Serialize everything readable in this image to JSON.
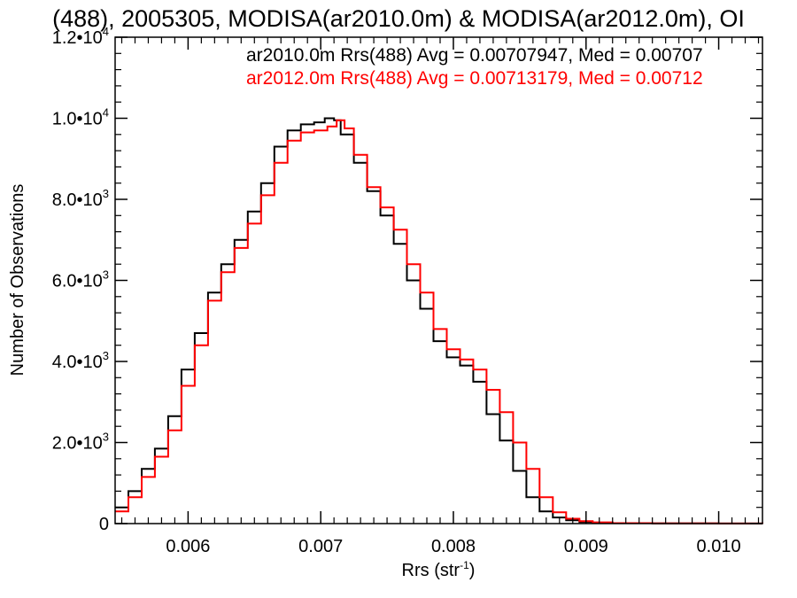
{
  "chart_data": {
    "type": "line",
    "title": "(488), 2005305, MODISA(ar2010.0m) & MODISA(ar2012.0m), OI",
    "xlabel": {
      "base": "Rrs (str",
      "sup": "-1",
      "close": ")"
    },
    "ylabel": "Number of Observations",
    "xlim": [
      0.00545,
      0.01033
    ],
    "ylim": [
      0,
      12000
    ],
    "x_ticks": [
      {
        "value": 0.006,
        "label": "0.006"
      },
      {
        "value": 0.007,
        "label": "0.007"
      },
      {
        "value": 0.008,
        "label": "0.008"
      },
      {
        "value": 0.009,
        "label": "0.009"
      },
      {
        "value": 0.01,
        "label": "0.010"
      }
    ],
    "y_ticks": [
      {
        "value": 0,
        "mant": "0",
        "exp": ""
      },
      {
        "value": 2000,
        "mant": "2.0",
        "exp": "3"
      },
      {
        "value": 4000,
        "mant": "4.0",
        "exp": "3"
      },
      {
        "value": 6000,
        "mant": "6.0",
        "exp": "3"
      },
      {
        "value": 8000,
        "mant": "8.0",
        "exp": "3"
      },
      {
        "value": 10000,
        "mant": "1.0",
        "exp": "4"
      },
      {
        "value": 12000,
        "mant": "1.2",
        "exp": "4"
      }
    ],
    "stats": [
      {
        "text": "ar2010.0m Rrs(488) Avg = 0.00707947, Med = 0.00707",
        "color": "#000000"
      },
      {
        "text": "ar2012.0m Rrs(488) Avg = 0.00713179, Med = 0.00712",
        "color": "#ff0000"
      }
    ],
    "series": [
      {
        "color": "#000000",
        "points": [
          [
            0.00545,
            400
          ],
          [
            0.00555,
            800
          ],
          [
            0.00565,
            1350
          ],
          [
            0.00575,
            1850
          ],
          [
            0.00585,
            2650
          ],
          [
            0.00595,
            3800
          ],
          [
            0.00605,
            4700
          ],
          [
            0.00615,
            5700
          ],
          [
            0.00625,
            6400
          ],
          [
            0.00635,
            7000
          ],
          [
            0.00645,
            7700
          ],
          [
            0.00655,
            8400
          ],
          [
            0.00665,
            9300
          ],
          [
            0.00675,
            9700
          ],
          [
            0.00685,
            9850
          ],
          [
            0.00695,
            9900
          ],
          [
            0.00703,
            10000
          ],
          [
            0.0071,
            9950
          ],
          [
            0.00715,
            9600
          ],
          [
            0.00725,
            8900
          ],
          [
            0.00735,
            8200
          ],
          [
            0.00745,
            7600
          ],
          [
            0.00755,
            6900
          ],
          [
            0.00765,
            6000
          ],
          [
            0.00775,
            5300
          ],
          [
            0.00785,
            4500
          ],
          [
            0.00795,
            4100
          ],
          [
            0.00805,
            3900
          ],
          [
            0.00815,
            3500
          ],
          [
            0.00825,
            2700
          ],
          [
            0.00835,
            2050
          ],
          [
            0.00845,
            1300
          ],
          [
            0.00855,
            650
          ],
          [
            0.00865,
            300
          ],
          [
            0.00875,
            150
          ],
          [
            0.00885,
            80
          ],
          [
            0.00895,
            40
          ],
          [
            0.00905,
            20
          ],
          [
            0.0092,
            10
          ],
          [
            0.0095,
            5
          ],
          [
            0.01,
            2
          ],
          [
            0.01033,
            0
          ]
        ]
      },
      {
        "color": "#ff0000",
        "points": [
          [
            0.00545,
            300
          ],
          [
            0.00555,
            650
          ],
          [
            0.00565,
            1150
          ],
          [
            0.00575,
            1650
          ],
          [
            0.00585,
            2300
          ],
          [
            0.00595,
            3400
          ],
          [
            0.00605,
            4400
          ],
          [
            0.00615,
            5500
          ],
          [
            0.00625,
            6200
          ],
          [
            0.00635,
            6800
          ],
          [
            0.00645,
            7400
          ],
          [
            0.00655,
            8100
          ],
          [
            0.00665,
            8900
          ],
          [
            0.00675,
            9450
          ],
          [
            0.00685,
            9650
          ],
          [
            0.00695,
            9700
          ],
          [
            0.00705,
            9800
          ],
          [
            0.00712,
            9950
          ],
          [
            0.00718,
            9750
          ],
          [
            0.00725,
            9100
          ],
          [
            0.00735,
            8300
          ],
          [
            0.00745,
            7800
          ],
          [
            0.00755,
            7250
          ],
          [
            0.00765,
            6400
          ],
          [
            0.00775,
            5700
          ],
          [
            0.00785,
            4800
          ],
          [
            0.00795,
            4300
          ],
          [
            0.00805,
            4050
          ],
          [
            0.00815,
            3800
          ],
          [
            0.00825,
            3300
          ],
          [
            0.00835,
            2750
          ],
          [
            0.00845,
            2000
          ],
          [
            0.00855,
            1350
          ],
          [
            0.00865,
            650
          ],
          [
            0.00875,
            280
          ],
          [
            0.00885,
            120
          ],
          [
            0.00895,
            60
          ],
          [
            0.00905,
            30
          ],
          [
            0.0092,
            12
          ],
          [
            0.0095,
            6
          ],
          [
            0.01,
            2
          ],
          [
            0.01033,
            0
          ]
        ]
      }
    ]
  }
}
